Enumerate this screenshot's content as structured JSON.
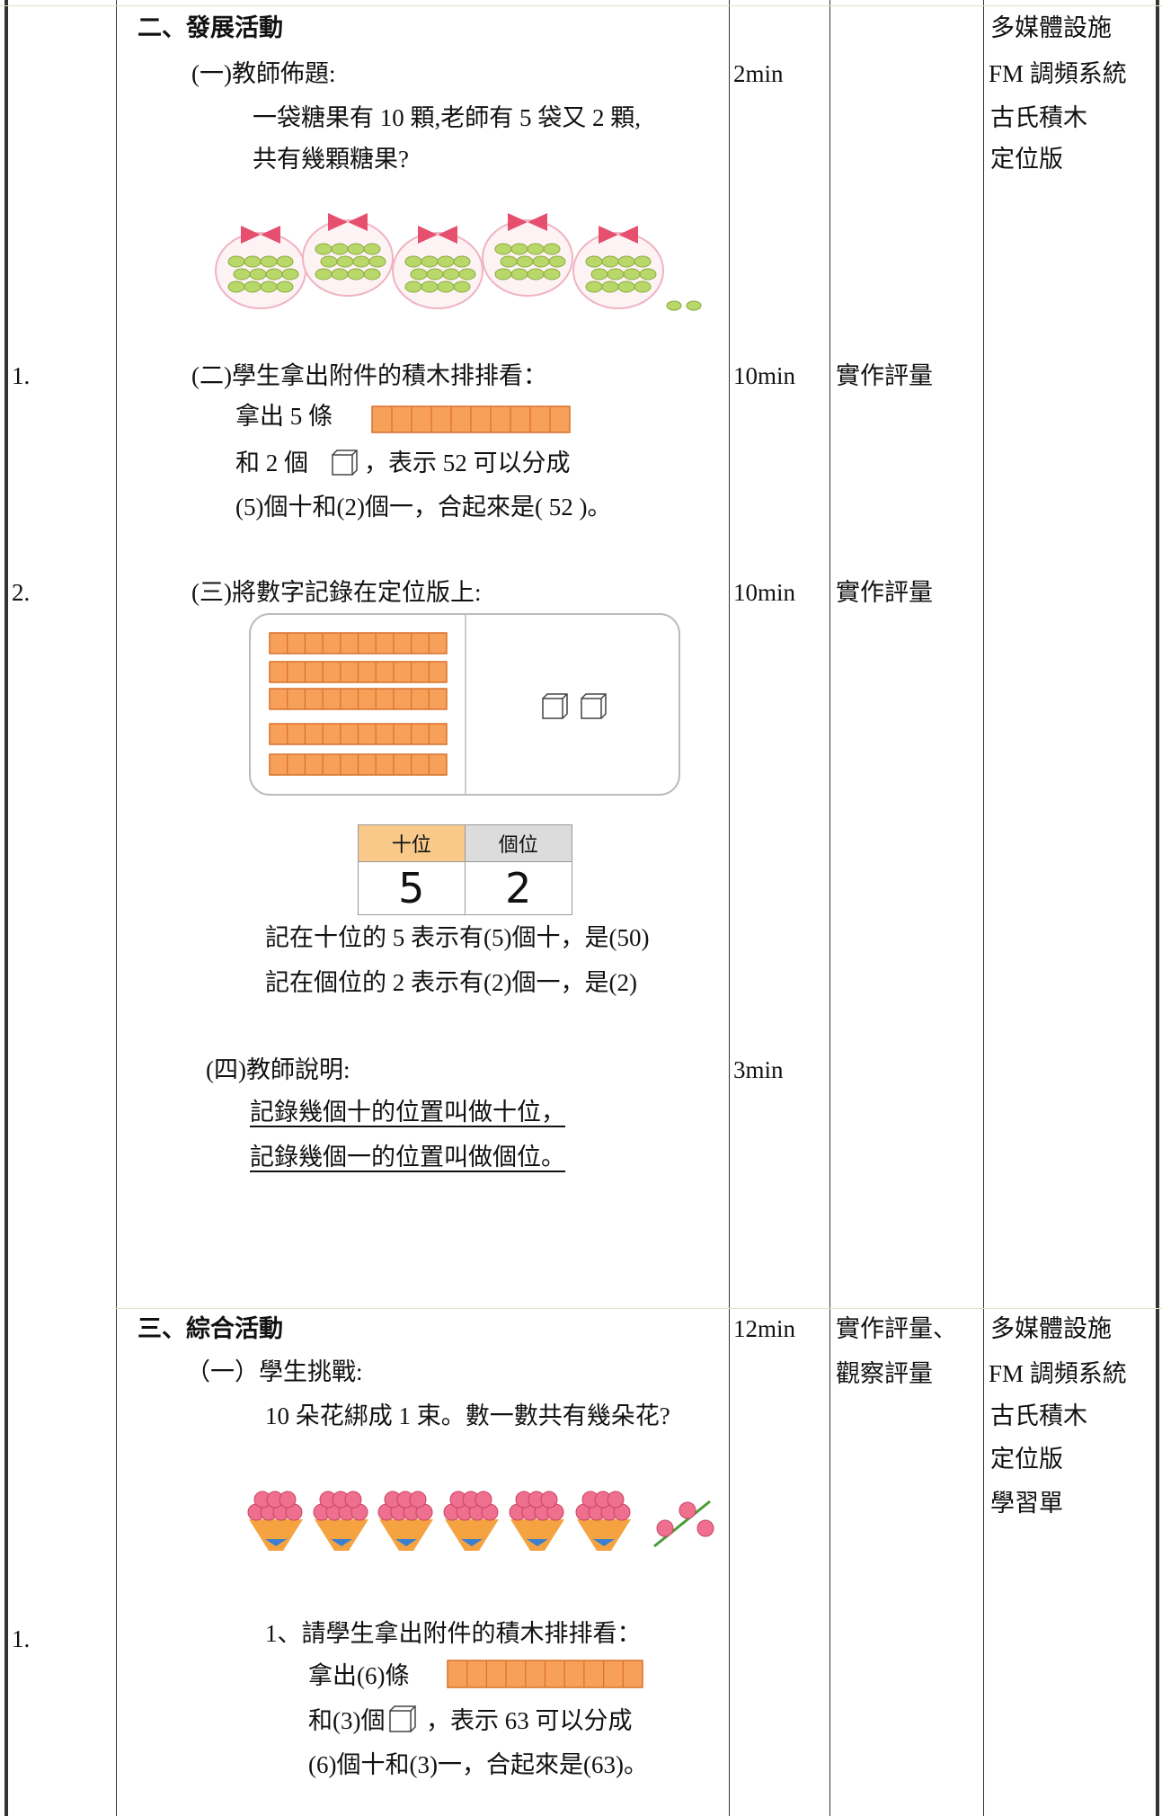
{
  "sections": [
    {
      "heading": "二、發展活動",
      "steps": [
        {
          "title": "(一)教師佈題:",
          "lines": [
            "一袋糖果有 10 顆,老師有 5 袋又 2 顆,",
            "共有幾顆糖果?"
          ],
          "time": "2min"
        },
        {
          "number": "1.",
          "title": "(二)學生拿出附件的積木排排看：",
          "lines": [
            "拿出 5 條",
            "和 2 個",
            "，表示 52 可以分成",
            "(5)個十和(2)個一，合起來是( 52 )。"
          ],
          "time": "10min",
          "assessment": "實作評量"
        },
        {
          "number": "2.",
          "title": "(三)將數字記錄在定位版上:",
          "place_value_table": {
            "headers": [
              "十位",
              "個位"
            ],
            "digits": [
              "5",
              "2"
            ]
          },
          "lines": [
            "記在十位的 5 表示有(5)個十，是(50)",
            "記在個位的 2 表示有(2)個一，是(2)"
          ],
          "time": "10min",
          "assessment": "實作評量"
        },
        {
          "title": "(四)教師說明:",
          "lines": [
            "記錄幾個十的位置叫做十位，",
            "記錄幾個一的位置叫做個位。"
          ],
          "time": "3min"
        }
      ],
      "resources": [
        "多媒體設施",
        "FM 調頻系統",
        "古氏積木",
        "定位版"
      ]
    },
    {
      "heading": "三、綜合活動",
      "steps": [
        {
          "title": "（一）學生挑戰:",
          "lines": [
            "10 朵花綁成 1 束。數一數共有幾朵花?"
          ],
          "time": "12min",
          "assessment": [
            "實作評量、",
            "觀察評量"
          ]
        },
        {
          "number": "1.",
          "title": "1、請學生拿出附件的積木排排看：",
          "lines": [
            "拿出(6)條",
            "和(3)個",
            "，表示 63 可以分成",
            "(6)個十和(3)一，合起來是(63)。"
          ]
        }
      ],
      "resources": [
        "多媒體設施",
        "FM 調頻系統",
        "古氏積木",
        "定位版",
        "學習單"
      ]
    }
  ]
}
